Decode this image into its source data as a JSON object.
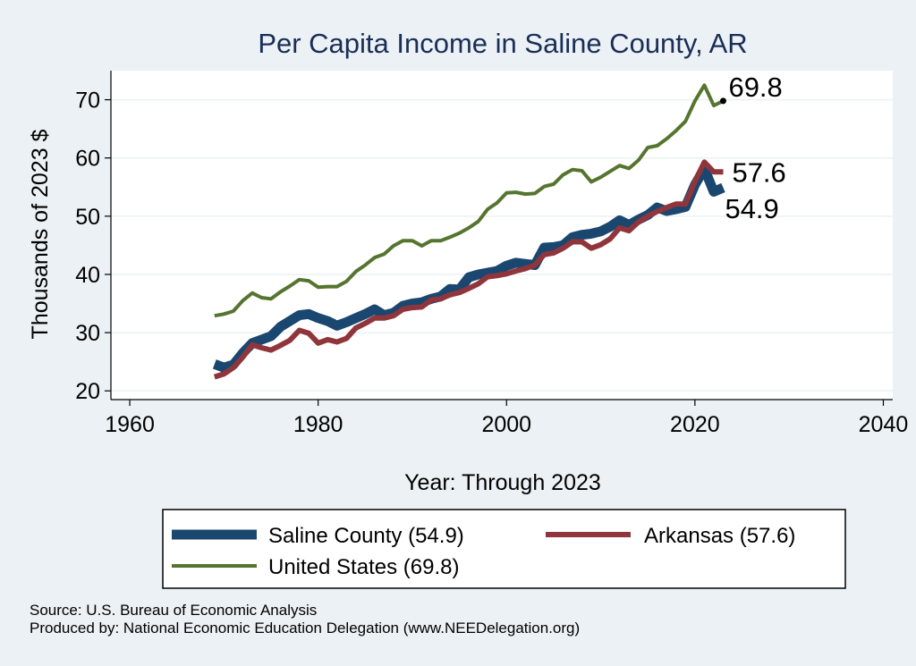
{
  "chart_data": {
    "type": "line",
    "title": "Per Capita Income in Saline County, AR",
    "xlabel": "Year: Through 2023",
    "ylabel": "Thousands of 2023 $",
    "xlim": [
      1958,
      2041
    ],
    "ylim": [
      18.5,
      75
    ],
    "xticks": [
      1960,
      1980,
      2000,
      2020,
      2040
    ],
    "yticks": [
      20,
      30,
      40,
      50,
      60,
      70
    ],
    "grid": true,
    "legend": "bottom",
    "x": [
      1969,
      1970,
      1971,
      1972,
      1973,
      1974,
      1975,
      1976,
      1977,
      1978,
      1979,
      1980,
      1981,
      1982,
      1983,
      1984,
      1985,
      1986,
      1987,
      1988,
      1989,
      1990,
      1991,
      1992,
      1993,
      1994,
      1995,
      1996,
      1997,
      1998,
      1999,
      2000,
      2001,
      2002,
      2003,
      2004,
      2005,
      2006,
      2007,
      2008,
      2009,
      2010,
      2011,
      2012,
      2013,
      2014,
      2015,
      2016,
      2017,
      2018,
      2019,
      2020,
      2021,
      2022,
      2023
    ],
    "series": [
      {
        "name": "Saline County (54.9)",
        "color": "#1a476f",
        "end_label": "54.9",
        "values": [
          24.6,
          24.0,
          24.5,
          26.5,
          28.2,
          28.8,
          29.4,
          31.0,
          32.0,
          33.0,
          33.2,
          32.5,
          32.0,
          31.2,
          31.8,
          32.5,
          33.2,
          34.0,
          33.0,
          33.4,
          34.6,
          35.0,
          35.2,
          35.8,
          36.2,
          37.5,
          37.4,
          39.5,
          40.0,
          40.3,
          40.6,
          41.5,
          42.0,
          41.8,
          41.6,
          44.6,
          44.7,
          45.0,
          46.4,
          46.8,
          47.0,
          47.4,
          48.2,
          49.3,
          48.5,
          49.4,
          50.2,
          51.5,
          50.9,
          51.2,
          51.6,
          55.4,
          58.2,
          54.2,
          54.9
        ]
      },
      {
        "name": "Arkansas (57.6)",
        "color": "#90353b",
        "end_label": "57.6",
        "values": [
          22.4,
          22.9,
          24.0,
          25.8,
          27.9,
          27.4,
          27.0,
          27.8,
          28.7,
          30.4,
          29.9,
          28.2,
          28.8,
          28.4,
          29.0,
          30.8,
          31.6,
          32.5,
          32.5,
          32.9,
          34.0,
          34.3,
          34.4,
          35.6,
          35.8,
          36.5,
          36.9,
          37.6,
          38.4,
          39.6,
          39.8,
          40.1,
          40.6,
          41.0,
          41.6,
          43.4,
          43.7,
          44.5,
          45.6,
          45.6,
          44.5,
          45.1,
          46.1,
          48.0,
          47.5,
          49.0,
          50.0,
          50.8,
          51.5,
          52.1,
          52.1,
          56.0,
          59.3,
          57.6,
          57.6
        ]
      },
      {
        "name": "United States (69.8)",
        "color": "#55752f",
        "end_label": "69.8",
        "values": [
          32.9,
          33.2,
          33.7,
          35.5,
          36.8,
          36.0,
          35.8,
          37.0,
          38.0,
          39.1,
          38.9,
          37.8,
          37.9,
          37.9,
          38.8,
          40.5,
          41.6,
          42.9,
          43.5,
          44.9,
          45.8,
          45.8,
          44.9,
          45.8,
          45.8,
          46.4,
          47.1,
          48.0,
          49.1,
          51.2,
          52.3,
          54.0,
          54.1,
          53.8,
          53.9,
          55.1,
          55.5,
          57.1,
          58.0,
          57.8,
          55.9,
          56.7,
          57.7,
          58.7,
          58.2,
          59.6,
          61.8,
          62.1,
          63.3,
          64.7,
          66.3,
          69.8,
          72.5,
          69.0,
          69.8
        ]
      }
    ],
    "source_lines": [
      "Source: U.S. Bureau of Economic Analysis",
      "Produced by: National Economic Education Delegation (www.NEEDelegation.org)"
    ]
  }
}
